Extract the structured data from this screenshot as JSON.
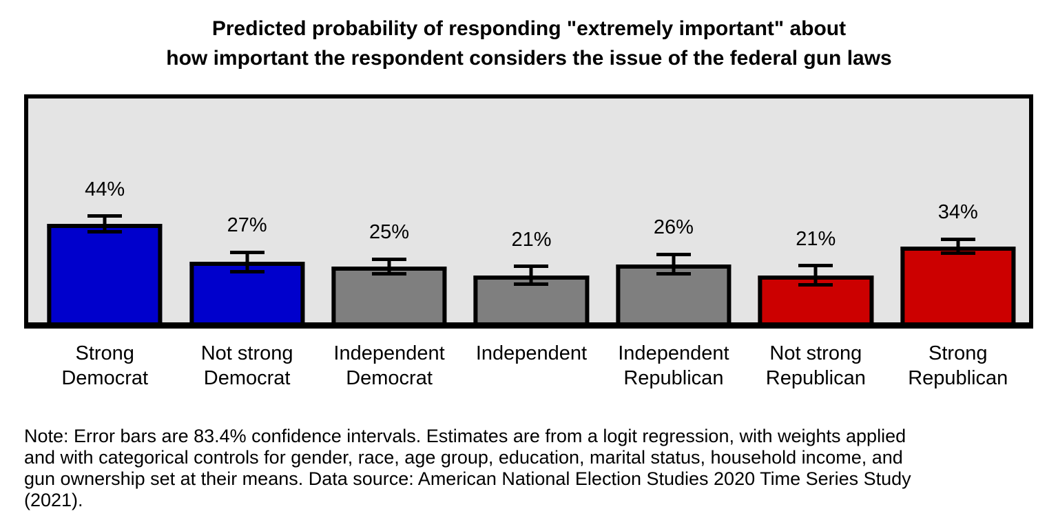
{
  "title": {
    "line1": "Predicted probability of responding \"extremely important\" about",
    "line2": "how important the respondent considers the issue of the federal gun laws"
  },
  "note": {
    "lines": [
      "Note: Error bars are 83.4% confidence intervals. Estimates are from a logit regression, with weights applied",
      "and with categorical controls for gender, race, age group, education, marital status, household income, and",
      "gun ownership set at their means. Data source: American National Election Studies 2020 Time Series Study",
      "(2021)."
    ]
  },
  "chart_data": {
    "type": "bar",
    "title": "Predicted probability of responding \"extremely important\" about how important the respondent considers the issue of the federal gun laws",
    "categories": [
      "Strong Democrat",
      "Not strong Democrat",
      "Independent Democrat",
      "Independent",
      "Independent Republican",
      "Not strong Republican",
      "Strong Republican"
    ],
    "category_lines": [
      [
        "Strong",
        "Democrat"
      ],
      [
        "Not strong",
        "Democrat"
      ],
      [
        "Independent",
        "Democrat"
      ],
      [
        "Independent",
        ""
      ],
      [
        "Independent",
        "Republican"
      ],
      [
        "Not strong",
        "Republican"
      ],
      [
        "Strong",
        "Republican"
      ]
    ],
    "values": [
      44,
      27,
      25,
      21,
      26,
      21,
      34
    ],
    "value_labels": [
      "44%",
      "27%",
      "25%",
      "21%",
      "26%",
      "21%",
      "34%"
    ],
    "errors_plus_minus": [
      3.5,
      4.3,
      3.3,
      4.0,
      4.4,
      4.3,
      3.2
    ],
    "error_bar_note": "83.4% confidence intervals",
    "bar_colors": [
      "#0000CC",
      "#0000CC",
      "#7F7F7F",
      "#7F7F7F",
      "#7F7F7F",
      "#CC0000",
      "#CC0000"
    ],
    "bar_border_color": "#000000",
    "error_bar_color": "#000000",
    "plot_background": "#E4E4E4",
    "xlabel": "",
    "ylabel": "",
    "ylim": [
      0,
      100
    ],
    "grid": false,
    "legend": "none"
  }
}
